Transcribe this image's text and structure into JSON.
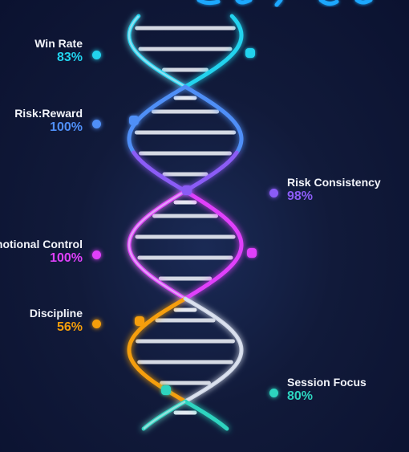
{
  "metrics": [
    {
      "label": "Win Rate",
      "value": "83%",
      "color": "#22d3ee"
    },
    {
      "label": "Risk:Reward",
      "value": "100%",
      "color": "#4f8ff7"
    },
    {
      "label": "Risk Consistency",
      "value": "98%",
      "color": "#8b5cf6"
    },
    {
      "label": "Emotional Control",
      "value": "100%",
      "color": "#e040fb"
    },
    {
      "label": "Discipline",
      "value": "56%",
      "color": "#f59e0b"
    },
    {
      "label": "Session Focus",
      "value": "80%",
      "color": "#2dd4bf"
    }
  ]
}
